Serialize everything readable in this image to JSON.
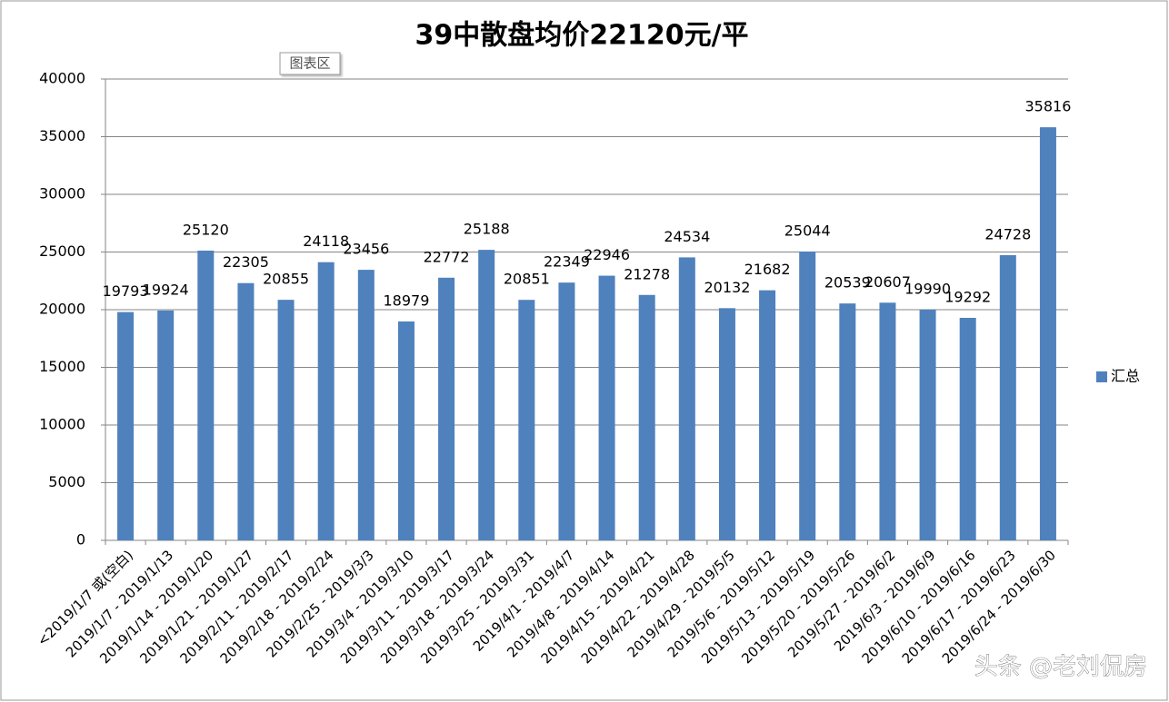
{
  "chart_data": {
    "type": "bar",
    "title": "39中散盘均价22120元/平",
    "categories": [
      "<2019/1/7 或(空白)",
      "2019/1/7 - 2019/1/13",
      "2019/1/14 - 2019/1/20",
      "2019/1/21 - 2019/1/27",
      "2019/2/11 - 2019/2/17",
      "2019/2/18 - 2019/2/24",
      "2019/2/25 - 2019/3/3",
      "2019/3/4 - 2019/3/10",
      "2019/3/11 - 2019/3/17",
      "2019/3/18 - 2019/3/24",
      "2019/3/25 - 2019/3/31",
      "2019/4/1 - 2019/4/7",
      "2019/4/8 - 2019/4/14",
      "2019/4/15 - 2019/4/21",
      "2019/4/22 - 2019/4/28",
      "2019/4/29 - 2019/5/5",
      "2019/5/6 - 2019/5/12",
      "2019/5/13 - 2019/5/19",
      "2019/5/20 - 2019/5/26",
      "2019/5/27 - 2019/6/2",
      "2019/6/3 - 2019/6/9",
      "2019/6/10 - 2019/6/16",
      "2019/6/17 - 2019/6/23",
      "2019/6/24 - 2019/6/30"
    ],
    "series": [
      {
        "name": "汇总",
        "color": "#4f81bd",
        "values": [
          19793,
          19924,
          25120,
          22305,
          20855,
          24118,
          23456,
          18979,
          22772,
          25188,
          20851,
          22349,
          22946,
          21278,
          24534,
          20132,
          21682,
          25044,
          20539,
          20607,
          19990,
          19292,
          24728,
          35816
        ]
      }
    ],
    "ylim": [
      0,
      40000
    ],
    "yticks": [
      0,
      5000,
      10000,
      15000,
      20000,
      25000,
      30000,
      35000,
      40000
    ],
    "grid": true,
    "legend": "right"
  },
  "tooltip": "图表区",
  "watermark": "头条 @老刘侃房"
}
